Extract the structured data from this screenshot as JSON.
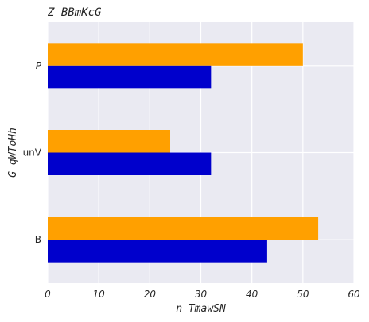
{
  "chart_data": {
    "type": "bar",
    "orientation": "horizontal",
    "title": "Z  BBmKcG",
    "xlabel": "n TmawSN",
    "ylabel": "G qWToHh",
    "categories": [
      "B",
      "unV",
      "P"
    ],
    "category_italic": [
      false,
      false,
      true
    ],
    "xlim": [
      0,
      60
    ],
    "xticks": [
      0,
      10,
      20,
      30,
      40,
      50,
      60
    ],
    "grid": true,
    "legend": "none",
    "series": [
      {
        "color": "#0000cc",
        "values": [
          43,
          32,
          32
        ]
      },
      {
        "color": "#ffa000",
        "values": [
          53,
          24,
          50
        ]
      }
    ],
    "style": {
      "plot_background": "#eaeaf2",
      "grid_color": "#ffffff"
    }
  }
}
